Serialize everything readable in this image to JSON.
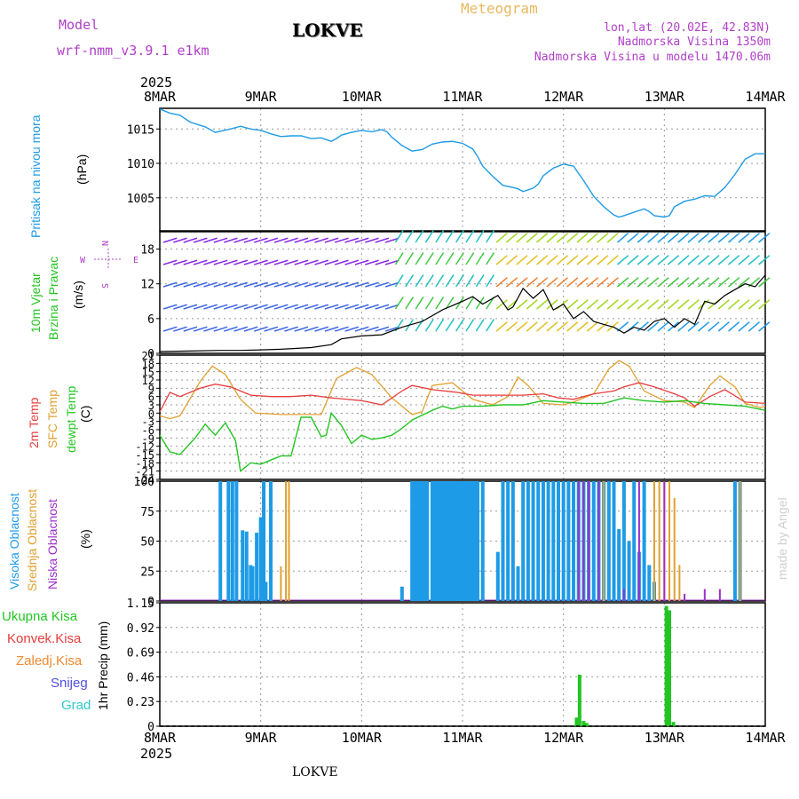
{
  "header": {
    "model_label": "Model",
    "model_name": "wrf-nmm_v3.9.1 e1km",
    "station": "LOKVE",
    "meteogram": "Meteogram",
    "coords": "lon,lat (20.02E, 42.83N)",
    "elev": "Nadmorska Visina 1350m",
    "elev_model": "Nadmorska Visina u modelu 1470.06m",
    "footer_station": "LOKVE",
    "credit": "made by Angel"
  },
  "colors": {
    "pressure": "#1e9be6",
    "wind_speed": "#000000",
    "temp2m": "#e83c3c",
    "sfc_temp": "#e0a030",
    "dewpoint": "#22c522",
    "cloud_high": "#1e9be6",
    "cloud_mid": "#e0a030",
    "cloud_low": "#9b30c8",
    "precip_total": "#22c522",
    "precip_conv": "#e83c3c",
    "precip_frz": "#f08a30",
    "precip_snow": "#5050e0",
    "precip_hail": "#30c8c8",
    "title_purple": "#b040c8",
    "meteogram_orange": "#e8b860"
  },
  "chart_data": [
    {
      "type": "line",
      "panel": "pressure",
      "ylabel_main": "Pritisak na nivou mora",
      "unit": "(hPa)",
      "x_ticks": [
        "8MAR",
        "9MAR",
        "10MAR",
        "11MAR",
        "12MAR",
        "13MAR",
        "14MAR"
      ],
      "x_year": "2025",
      "ylim": [
        1000.2,
        1018
      ],
      "yticks": [
        1005,
        1010,
        1015
      ],
      "series": [
        {
          "x": [
            0,
            0.1,
            0.2,
            0.3,
            0.45,
            0.55,
            0.7,
            0.8,
            0.9,
            1.0,
            1.1,
            1.2,
            1.3,
            1.4,
            1.5,
            1.6,
            1.7,
            1.75,
            1.8,
            1.9,
            2.0,
            2.1,
            2.2,
            2.25,
            2.3,
            2.4,
            2.5,
            2.55,
            2.6,
            2.7,
            2.8,
            2.9,
            3.0,
            3.1,
            3.15,
            3.2,
            3.3,
            3.4,
            3.5,
            3.55,
            3.6,
            3.7,
            3.75,
            3.8,
            3.9,
            4.0,
            4.1,
            4.2,
            4.3,
            4.4,
            4.5,
            4.55,
            4.6,
            4.7,
            4.8,
            4.85,
            4.9,
            5.0,
            5.05,
            5.1,
            5.2,
            5.3,
            5.4,
            5.5,
            5.6,
            5.7,
            5.8,
            5.9,
            6.0
          ],
          "y": [
            1017.9,
            1017.3,
            1017.0,
            1016.0,
            1015.3,
            1014.5,
            1015.0,
            1015.4,
            1015.0,
            1014.8,
            1014.3,
            1013.9,
            1014.0,
            1014.0,
            1013.6,
            1013.7,
            1013.2,
            1013.6,
            1014.1,
            1014.5,
            1014.8,
            1014.6,
            1014.9,
            1014.6,
            1013.8,
            1012.6,
            1011.8,
            1011.9,
            1012.0,
            1012.8,
            1013.1,
            1013.2,
            1012.9,
            1012.1,
            1011.0,
            1009.6,
            1008.1,
            1006.8,
            1006.5,
            1006.3,
            1005.9,
            1006.4,
            1007.0,
            1008.2,
            1009.3,
            1009.9,
            1009.6,
            1007.5,
            1005.2,
            1003.7,
            1002.5,
            1002.2,
            1002.4,
            1002.9,
            1003.4,
            1003.0,
            1002.4,
            1002.2,
            1002.4,
            1003.7,
            1004.5,
            1004.8,
            1005.3,
            1005.2,
            1006.5,
            1008.4,
            1010.6,
            1011.4,
            1011.4
          ]
        }
      ]
    },
    {
      "type": "line",
      "panel": "wind",
      "ylabel_main": "10m Vjetar",
      "ylabel_sub": "Brzina i Pravac",
      "unit": "(m/s)",
      "compass": {
        "n": "N",
        "w": "W",
        "e": "E",
        "s": "S"
      },
      "ylim": [
        0,
        21
      ],
      "yticks": [
        0,
        6,
        12,
        18
      ],
      "series": [
        {
          "x": [
            0,
            0.3,
            0.6,
            0.8,
            1.0,
            1.2,
            1.5,
            1.7,
            1.8,
            2.0,
            2.2,
            2.4,
            2.6,
            2.8,
            3.0,
            3.1,
            3.2,
            3.35,
            3.45,
            3.5,
            3.6,
            3.7,
            3.8,
            3.9,
            4.0,
            4.1,
            4.2,
            4.3,
            4.4,
            4.5,
            4.6,
            4.7,
            4.8,
            4.9,
            5.0,
            5.1,
            5.2,
            5.3,
            5.4,
            5.5,
            5.6,
            5.7,
            5.8,
            5.9,
            6.0
          ],
          "y": [
            0.3,
            0.4,
            0.5,
            0.5,
            0.6,
            0.7,
            1.0,
            1.5,
            2.5,
            3.0,
            3.2,
            4.5,
            5.5,
            7.5,
            9.0,
            9.8,
            8.5,
            10.0,
            7.5,
            8.0,
            11.2,
            9.5,
            11.0,
            7.5,
            8.5,
            6.0,
            7.2,
            5.5,
            5.0,
            4.5,
            3.5,
            4.5,
            4.0,
            5.5,
            6.0,
            4.5,
            6.0,
            5.0,
            9.0,
            8.5,
            10.0,
            11.0,
            12.0,
            11.5,
            13.5
          ]
        }
      ]
    },
    {
      "type": "line",
      "panel": "temperature",
      "ylabel_main": "2m Temp",
      "ylabel_sfc": "SFC Temp",
      "ylabel_dew": "dewpt Temp",
      "unit": "(C)",
      "ylim": [
        -24,
        21
      ],
      "yticks": [
        -24,
        -21,
        -18,
        -15,
        -12,
        -9,
        -6,
        -3,
        0,
        3,
        6,
        9,
        12,
        15,
        18,
        21
      ],
      "series": [
        {
          "name": "2m Temp",
          "x": [
            0,
            0.1,
            0.2,
            0.4,
            0.55,
            0.7,
            0.9,
            1.1,
            1.3,
            1.5,
            1.7,
            2.0,
            2.2,
            2.4,
            2.5,
            2.7,
            2.95,
            3.1,
            3.3,
            3.6,
            3.8,
            3.95,
            4.1,
            4.3,
            4.5,
            4.6,
            4.75,
            4.9,
            5.1,
            5.2,
            5.3,
            5.45,
            5.6,
            5.8,
            6.0
          ],
          "y": [
            0.5,
            7.5,
            6.0,
            9.0,
            10.5,
            9.5,
            6.5,
            6.0,
            6.0,
            6.5,
            5.5,
            4.5,
            3.0,
            8.0,
            10.0,
            8.5,
            7.5,
            6.5,
            6.5,
            6.5,
            7.0,
            5.5,
            5.0,
            7.0,
            8.0,
            9.5,
            11.0,
            9.5,
            7.0,
            5.5,
            2.5,
            6.0,
            8.5,
            4.0,
            3.5
          ]
        },
        {
          "name": "SFC Temp",
          "x": [
            0,
            0.1,
            0.2,
            0.4,
            0.52,
            0.65,
            0.8,
            0.95,
            1.2,
            1.6,
            1.75,
            1.95,
            2.1,
            2.3,
            2.5,
            2.6,
            2.7,
            2.9,
            3.1,
            3.3,
            3.45,
            3.55,
            3.65,
            3.8,
            4.0,
            4.1,
            4.3,
            4.45,
            4.55,
            4.65,
            4.8,
            5.0,
            5.2,
            5.3,
            5.45,
            5.55,
            5.7,
            5.8,
            5.95,
            6.0
          ],
          "y": [
            -1.0,
            -2.0,
            -1.0,
            11.5,
            17.0,
            14.0,
            5.0,
            0.0,
            -0.5,
            -0.5,
            12.5,
            16.5,
            14.0,
            5.5,
            -0.5,
            0.5,
            10.0,
            11.0,
            5.0,
            3.0,
            6.0,
            13.0,
            10.0,
            3.5,
            3.0,
            4.0,
            7.0,
            16.0,
            19.0,
            17.0,
            8.0,
            4.5,
            4.0,
            2.0,
            10.0,
            13.5,
            9.5,
            3.5,
            2.0,
            2.5
          ]
        },
        {
          "name": "dewpt Temp",
          "x": [
            0,
            0.1,
            0.2,
            0.35,
            0.45,
            0.55,
            0.65,
            0.75,
            0.8,
            0.9,
            1.0,
            1.1,
            1.2,
            1.3,
            1.4,
            1.5,
            1.6,
            1.65,
            1.7,
            1.8,
            1.9,
            2.0,
            2.1,
            2.2,
            2.3,
            2.4,
            2.5,
            2.7,
            2.8,
            2.9,
            3.0,
            3.2,
            3.4,
            3.6,
            3.8,
            4.0,
            4.2,
            4.4,
            4.6,
            4.8,
            5.0,
            5.2,
            5.4,
            5.6,
            5.8,
            6.0
          ],
          "y": [
            -8.0,
            -14.0,
            -15.0,
            -9.0,
            -4.0,
            -8.0,
            -3.5,
            -10.0,
            -21.0,
            -18.0,
            -18.5,
            -17.0,
            -15.5,
            -15.5,
            -1.5,
            -1.5,
            -8.5,
            -8.0,
            0.0,
            -4.5,
            -11.0,
            -8.0,
            -9.5,
            -9.0,
            -8.0,
            -5.5,
            -2.5,
            1.0,
            2.5,
            1.5,
            2.5,
            2.5,
            3.0,
            3.0,
            4.5,
            4.0,
            3.5,
            3.5,
            5.5,
            4.5,
            4.0,
            4.5,
            3.5,
            3.0,
            2.5,
            1.0
          ]
        }
      ]
    },
    {
      "type": "bar",
      "panel": "clouds",
      "ylabel_high": "Visoka Oblacnost",
      "ylabel_mid": "Srednja Oblacnost",
      "ylabel_low": "Niska Oblacnost",
      "unit": "(%)",
      "ylim": [
        0,
        100
      ],
      "yticks": [
        0,
        25,
        50,
        75,
        100
      ],
      "series": [
        {
          "name": "Visoka Oblacnost",
          "x": [
            0.6,
            0.68,
            0.72,
            0.76,
            0.82,
            0.86,
            0.9,
            0.92,
            0.96,
            1.0,
            1.03,
            1.05,
            1.1,
            2.4,
            2.5,
            2.53,
            2.56,
            2.59,
            2.62,
            2.65,
            2.7,
            2.73,
            2.76,
            2.79,
            2.82,
            2.85,
            2.88,
            2.91,
            2.94,
            2.97,
            3.0,
            3.03,
            3.06,
            3.09,
            3.12,
            3.15,
            3.2,
            3.35,
            3.4,
            3.45,
            3.5,
            3.55,
            3.6,
            3.65,
            3.7,
            3.75,
            3.8,
            3.85,
            3.9,
            3.95,
            4.0,
            4.05,
            4.1,
            4.15,
            4.2,
            4.25,
            4.3,
            4.35,
            4.4,
            4.45,
            4.5,
            4.55,
            4.6,
            4.65,
            4.7,
            4.75,
            4.8,
            4.85,
            4.9,
            5.7,
            5.75
          ],
          "y": [
            100,
            100,
            100,
            100,
            59,
            58,
            30,
            29,
            57,
            70,
            100,
            16,
            100,
            12,
            100,
            100,
            100,
            100,
            100,
            100,
            100,
            100,
            100,
            100,
            100,
            100,
            100,
            100,
            100,
            100,
            100,
            100,
            100,
            100,
            100,
            100,
            100,
            41,
            100,
            100,
            100,
            29,
            100,
            100,
            100,
            100,
            100,
            100,
            100,
            100,
            100,
            100,
            100,
            100,
            100,
            100,
            100,
            100,
            100,
            100,
            100,
            60,
            100,
            50,
            100,
            41,
            100,
            30,
            16,
            100,
            100
          ]
        },
        {
          "name": "Srednja Oblacnost",
          "x": [
            1.2,
            1.25,
            1.28,
            4.15,
            4.2,
            4.4,
            4.9,
            4.95,
            5.0,
            5.05,
            5.1,
            5.15,
            5.75
          ],
          "y": [
            29,
            100,
            100,
            15,
            100,
            100,
            100,
            100,
            100,
            100,
            86,
            30,
            100
          ]
        },
        {
          "name": "Niska Oblacnost",
          "x": [
            4.15,
            4.2,
            4.25,
            4.35,
            4.6,
            4.75,
            5.0,
            5.2,
            5.4,
            5.55
          ],
          "y": [
            100,
            100,
            100,
            100,
            10,
            100,
            100,
            6,
            10,
            10
          ]
        }
      ]
    },
    {
      "type": "bar",
      "panel": "precip",
      "ylabel_main": "1hr Precip (mm)",
      "legend": [
        "Ukupna Kisa",
        "Konvek.Kisa",
        "Zaledj.Kisa",
        "Snijeg",
        "Grad"
      ],
      "ylim": [
        0,
        1.15
      ],
      "yticks": [
        0,
        0.23,
        0.46,
        0.69,
        0.92,
        1.15
      ],
      "series": [
        {
          "name": "Ukupna Kisa",
          "x": [
            4.13,
            4.16,
            4.2,
            4.23,
            4.25,
            5.02,
            5.05,
            5.09,
            5.13
          ],
          "y": [
            0.08,
            0.48,
            0.05,
            0.03,
            0.01,
            1.12,
            1.08,
            0.04,
            0.01
          ]
        }
      ]
    }
  ]
}
